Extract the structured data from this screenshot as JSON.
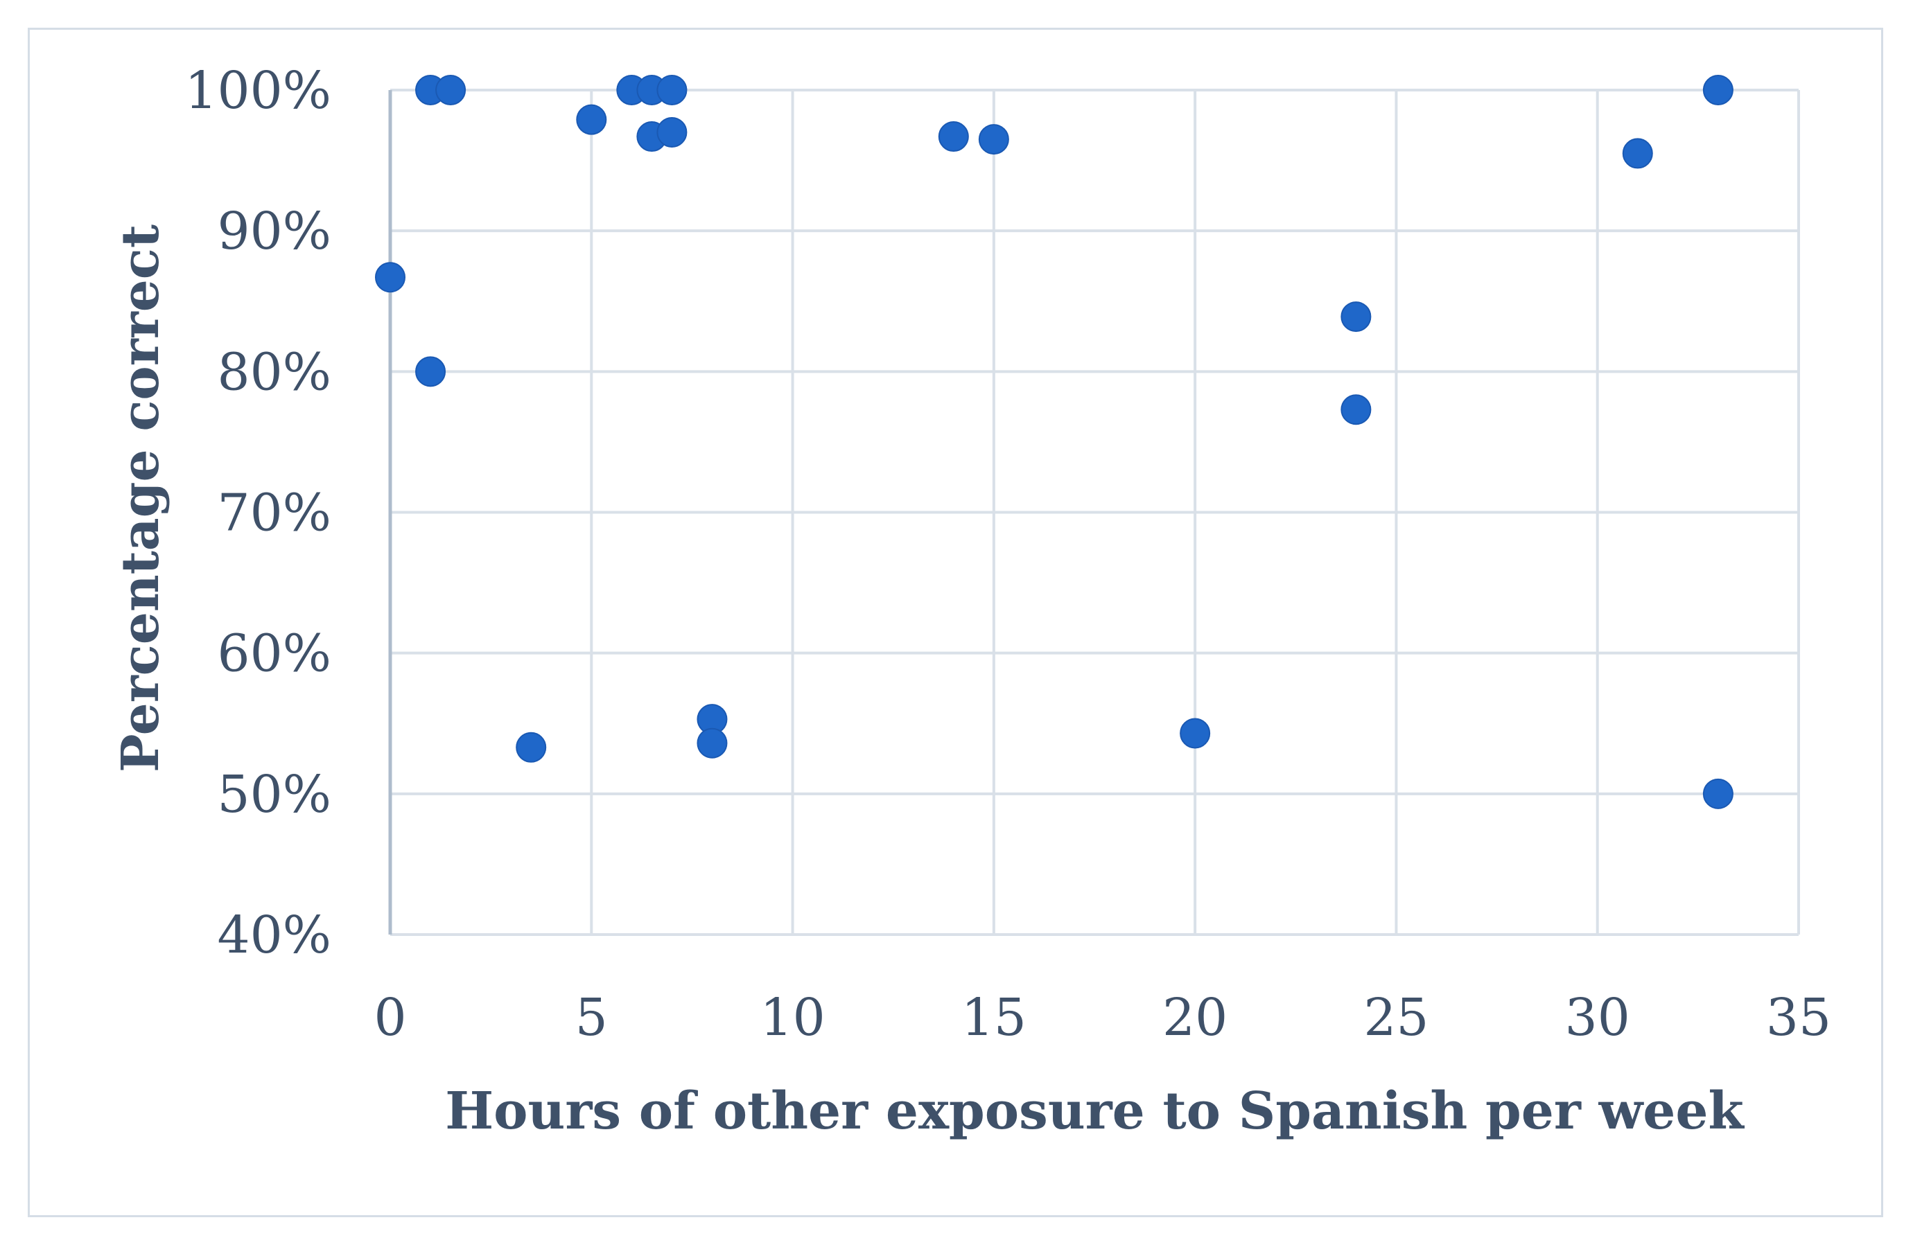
{
  "chart_data": {
    "type": "scatter",
    "title": "",
    "xlabel": "Hours of other exposure to Spanish per week",
    "ylabel": "Percentage correct",
    "xlim": [
      0,
      35
    ],
    "ylim": [
      40,
      100
    ],
    "x_ticks": [
      "0",
      "5",
      "10",
      "15",
      "20",
      "25",
      "30",
      "35"
    ],
    "y_ticks": [
      "40%",
      "50%",
      "60%",
      "70%",
      "80%",
      "90%",
      "100%"
    ],
    "grid": true,
    "legend": "none",
    "marker_color": "#1f67c9",
    "points": [
      {
        "x": 0,
        "y": 86.7
      },
      {
        "x": 1,
        "y": 100
      },
      {
        "x": 1.5,
        "y": 100
      },
      {
        "x": 1,
        "y": 80
      },
      {
        "x": 3.5,
        "y": 53.3
      },
      {
        "x": 5,
        "y": 97.9
      },
      {
        "x": 6,
        "y": 100
      },
      {
        "x": 6.5,
        "y": 100
      },
      {
        "x": 7,
        "y": 100
      },
      {
        "x": 6.5,
        "y": 96.7
      },
      {
        "x": 7,
        "y": 97.0
      },
      {
        "x": 8,
        "y": 55.3
      },
      {
        "x": 8,
        "y": 53.6
      },
      {
        "x": 14,
        "y": 96.7
      },
      {
        "x": 15,
        "y": 96.5
      },
      {
        "x": 20,
        "y": 54.3
      },
      {
        "x": 24,
        "y": 83.9
      },
      {
        "x": 24,
        "y": 77.3
      },
      {
        "x": 31,
        "y": 95.5
      },
      {
        "x": 33,
        "y": 100
      },
      {
        "x": 33,
        "y": 50
      }
    ]
  }
}
